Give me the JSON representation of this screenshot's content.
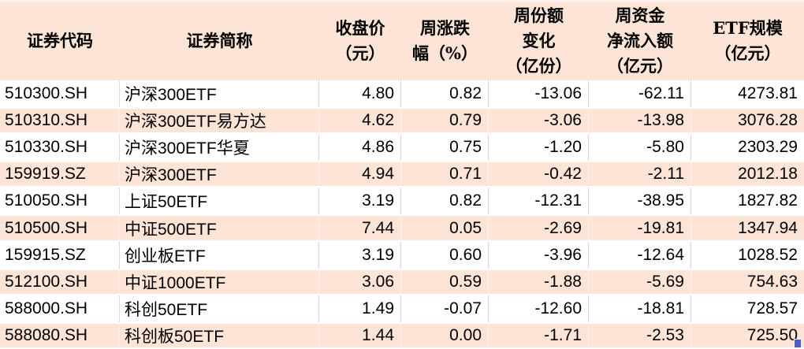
{
  "chart_data": {
    "type": "table",
    "columns": [
      {
        "key": "security-code",
        "label": "证券代码",
        "lines": [
          "证券代码"
        ]
      },
      {
        "key": "security-name",
        "label": "证券简称",
        "lines": [
          "证券简称"
        ]
      },
      {
        "key": "close-price",
        "label": "收盘价（元）",
        "lines": [
          "收盘价",
          "（元）"
        ]
      },
      {
        "key": "weekly-change",
        "label": "周涨跌幅（%）",
        "lines": [
          "周涨跌",
          "幅（%）"
        ]
      },
      {
        "key": "share-change",
        "label": "周份额变化（亿份）",
        "lines": [
          "周份额",
          "变化",
          "（亿份）"
        ]
      },
      {
        "key": "net-inflow",
        "label": "周资金净流入额（亿元）",
        "lines": [
          "周资金",
          "净流入额",
          "（亿元）"
        ]
      },
      {
        "key": "etf-scale",
        "label": "ETF规模（亿元）",
        "lines": [
          "ETF规模",
          "（亿元）"
        ]
      }
    ],
    "rows": [
      [
        "510300.SH",
        "沪深300ETF",
        "4.80",
        "0.82",
        "-13.06",
        "-62.11",
        "4273.81"
      ],
      [
        "510310.SH",
        "沪深300ETF易方达",
        "4.62",
        "0.79",
        "-3.06",
        "-13.98",
        "3076.28"
      ],
      [
        "510330.SH",
        "沪深300ETF华夏",
        "4.86",
        "0.75",
        "-1.20",
        "-5.80",
        "2303.29"
      ],
      [
        "159919.SZ",
        "沪深300ETF",
        "4.94",
        "0.71",
        "-0.42",
        "-2.11",
        "2012.18"
      ],
      [
        "510050.SH",
        "上证50ETF",
        "3.19",
        "0.82",
        "-12.31",
        "-38.95",
        "1827.82"
      ],
      [
        "510500.SH",
        "中证500ETF",
        "7.44",
        "0.05",
        "-2.69",
        "-19.81",
        "1347.94"
      ],
      [
        "159915.SZ",
        "创业板ETF",
        "3.19",
        "0.60",
        "-3.96",
        "-12.64",
        "1028.52"
      ],
      [
        "512100.SH",
        "中证1000ETF",
        "3.06",
        "0.59",
        "-1.88",
        "-5.69",
        "754.63"
      ],
      [
        "588000.SH",
        "科创50ETF",
        "1.49",
        "-0.07",
        "-12.60",
        "-18.81",
        "728.57"
      ],
      [
        "588080.SH",
        "科创板50ETF",
        "1.44",
        "0.00",
        "-1.71",
        "-2.53",
        "725.50"
      ]
    ],
    "layout": {
      "stripe_pattern": "header peach, then rows alternate white / peach starting with white",
      "grid": "light gray vertical gridlines visible on white rows only"
    }
  },
  "colors": {
    "header_bg": "#fce4d6",
    "stripe_row_bg": "#fce4d6",
    "plain_row_bg": "#ffffff",
    "grid_line": "#d9d9d9",
    "text": "#000000",
    "fill_handle": "#4a5ec6"
  }
}
